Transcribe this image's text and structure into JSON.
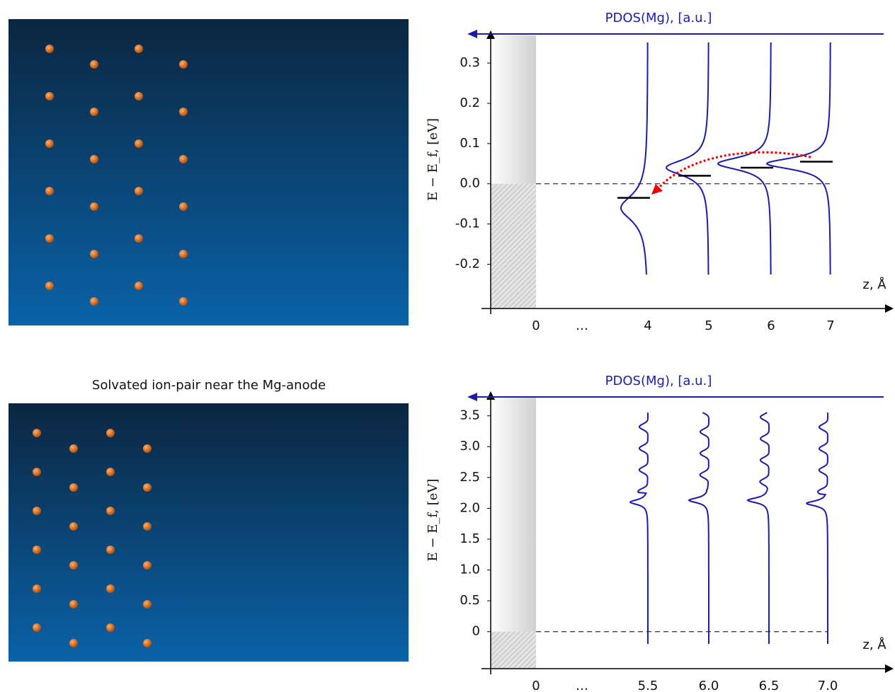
{
  "caption": "Solvated ion-pair near the Mg-anode",
  "chart_data": [
    {
      "type": "pdos",
      "top_label": "PDOS(Mg), [a.u.]",
      "ylabel": "E − E_f, [eV]",
      "xlabel": "z, Å",
      "categories": [
        "0",
        "…",
        "4",
        "5",
        "6",
        "7"
      ],
      "ylim": [
        -0.31,
        0.36
      ],
      "yticks": [
        0.3,
        0.2,
        0.1,
        {
          "value": 0,
          "label": "0.0"
        },
        -0.1,
        -0.2
      ],
      "series": [
        {
          "color": "#1c1ca8",
          "values": [
            null,
            null,
            -0.06,
            0.04,
            0.05,
            0.05
          ]
        }
      ],
      "levels": [
        null,
        null,
        -0.035,
        0.02,
        0.04,
        0.055
      ]
    },
    {
      "type": "pdos",
      "top_label": "PDOS(Mg), [a.u.]",
      "ylabel": "E − E_f, [eV]",
      "xlabel": "z, Å",
      "categories": [
        "0",
        "…",
        "5.5",
        "6.0",
        "6.5",
        "7.0"
      ],
      "ylim": [
        -0.6,
        3.76
      ],
      "yticks": [
        3.5,
        {
          "value": 3,
          "label": "3.0"
        },
        2.5,
        {
          "value": 2,
          "label": "2.0"
        },
        1.5,
        {
          "value": 1,
          "label": "1.0"
        },
        0.5,
        0
      ],
      "series": [
        {
          "color": "#1c1ca8",
          "values": [
            null,
            null,
            2.1,
            2.13,
            2.13,
            2.08
          ]
        }
      ]
    }
  ]
}
